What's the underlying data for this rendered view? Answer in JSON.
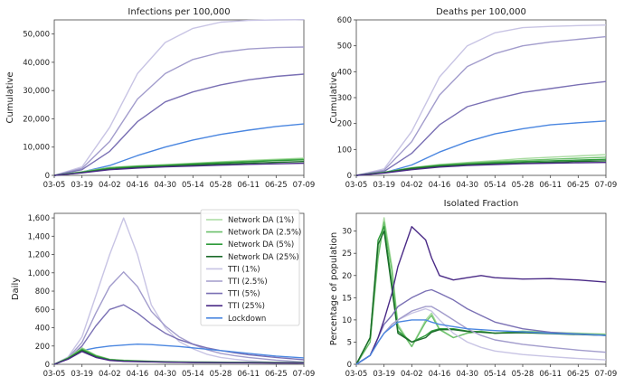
{
  "figure": {
    "x_tick_labels": [
      "03-05",
      "03-19",
      "04-02",
      "04-16",
      "04-30",
      "05-14",
      "05-28",
      "06-11",
      "06-25",
      "07-09"
    ]
  },
  "legend": {
    "entries": [
      {
        "name": "Network DA (1%)",
        "color": "#a8dba0"
      },
      {
        "name": "Network DA (2.5%)",
        "color": "#6cc06c"
      },
      {
        "name": "Network DA (5%)",
        "color": "#2e9a3a"
      },
      {
        "name": "Network DA (25%)",
        "color": "#1b6b2a"
      },
      {
        "name": "TTI (1%)",
        "color": "#c8c4e4"
      },
      {
        "name": "TTI (2.5%)",
        "color": "#a29ccc"
      },
      {
        "name": "TTI (5%)",
        "color": "#7a70b4"
      },
      {
        "name": "TTI (25%)",
        "color": "#4a2a86"
      },
      {
        "name": "Lockdown",
        "color": "#4a86e0"
      }
    ]
  },
  "chart_data": [
    {
      "type": "line",
      "title": "Infections per 100,000",
      "xlabel": "",
      "ylabel": "Cumulative",
      "ylim": [
        0,
        55000
      ],
      "yticks": [
        0,
        10000,
        20000,
        30000,
        40000,
        50000
      ],
      "ytick_labels": [
        "0",
        "10,000",
        "20,000",
        "30,000",
        "40,000",
        "50,000"
      ],
      "x": [
        "03-05",
        "03-19",
        "04-02",
        "04-16",
        "04-30",
        "05-14",
        "05-28",
        "06-11",
        "06-25",
        "07-09"
      ],
      "series": [
        {
          "name": "TTI (1%)",
          "color": "#c8c4e4",
          "values": [
            0,
            3000,
            17000,
            36000,
            47000,
            52000,
            54200,
            54800,
            55000,
            55100
          ]
        },
        {
          "name": "TTI (2.5%)",
          "color": "#a29ccc",
          "values": [
            0,
            2500,
            12000,
            27000,
            36000,
            41000,
            43500,
            44700,
            45200,
            45400
          ]
        },
        {
          "name": "TTI (5%)",
          "color": "#7a70b4",
          "values": [
            0,
            2000,
            8500,
            19000,
            26000,
            29500,
            32000,
            33800,
            35000,
            35800
          ]
        },
        {
          "name": "Lockdown",
          "color": "#4a86e0",
          "values": [
            0,
            1200,
            3500,
            7000,
            10000,
            12500,
            14500,
            16000,
            17300,
            18200
          ]
        },
        {
          "name": "Network DA (1%)",
          "color": "#a8dba0",
          "values": [
            0,
            1300,
            2800,
            3400,
            3800,
            4300,
            4800,
            5300,
            5700,
            6100
          ]
        },
        {
          "name": "Network DA (2.5%)",
          "color": "#6cc06c",
          "values": [
            0,
            1200,
            2700,
            3300,
            3700,
            4200,
            4600,
            5000,
            5400,
            5800
          ]
        },
        {
          "name": "Network DA (5%)",
          "color": "#2e9a3a",
          "values": [
            0,
            1100,
            2500,
            3100,
            3500,
            4000,
            4400,
            4800,
            5200,
            5500
          ]
        },
        {
          "name": "Network DA (25%)",
          "color": "#1b6b2a",
          "values": [
            0,
            1000,
            2200,
            2800,
            3200,
            3600,
            4000,
            4300,
            4600,
            4900
          ]
        },
        {
          "name": "TTI (25%)",
          "color": "#4a2a86",
          "values": [
            0,
            900,
            2000,
            2600,
            3000,
            3300,
            3600,
            3900,
            4100,
            4300
          ]
        }
      ]
    },
    {
      "type": "line",
      "title": "Deaths per 100,000",
      "xlabel": "",
      "ylabel": "Cumulative",
      "ylim": [
        0,
        600
      ],
      "yticks": [
        0,
        100,
        200,
        300,
        400,
        500,
        600
      ],
      "ytick_labels": [
        "0",
        "100",
        "200",
        "300",
        "400",
        "500",
        "600"
      ],
      "x": [
        "03-05",
        "03-19",
        "04-02",
        "04-16",
        "04-30",
        "05-14",
        "05-28",
        "06-11",
        "06-25",
        "07-09"
      ],
      "series": [
        {
          "name": "TTI (1%)",
          "color": "#c8c4e4",
          "values": [
            0,
            25,
            170,
            380,
            500,
            550,
            570,
            575,
            578,
            580
          ]
        },
        {
          "name": "TTI (2.5%)",
          "color": "#a29ccc",
          "values": [
            0,
            20,
            130,
            310,
            420,
            470,
            500,
            515,
            525,
            535
          ]
        },
        {
          "name": "TTI (5%)",
          "color": "#7a70b4",
          "values": [
            0,
            15,
            85,
            195,
            265,
            295,
            320,
            335,
            350,
            362
          ]
        },
        {
          "name": "Lockdown",
          "color": "#4a86e0",
          "values": [
            0,
            10,
            40,
            90,
            130,
            160,
            180,
            195,
            203,
            210
          ]
        },
        {
          "name": "Network DA (1%)",
          "color": "#a8dba0",
          "values": [
            0,
            12,
            30,
            42,
            50,
            57,
            65,
            70,
            75,
            80
          ]
        },
        {
          "name": "Network DA (2.5%)",
          "color": "#6cc06c",
          "values": [
            0,
            12,
            29,
            40,
            47,
            53,
            58,
            62,
            66,
            70
          ]
        },
        {
          "name": "Network DA (5%)",
          "color": "#2e9a3a",
          "values": [
            0,
            11,
            28,
            38,
            44,
            49,
            53,
            56,
            59,
            62
          ]
        },
        {
          "name": "Network DA (25%)",
          "color": "#1b6b2a",
          "values": [
            0,
            10,
            26,
            35,
            41,
            45,
            48,
            51,
            54,
            56
          ]
        },
        {
          "name": "TTI (25%)",
          "color": "#4a2a86",
          "values": [
            0,
            9,
            22,
            32,
            38,
            42,
            45,
            47,
            49,
            50
          ]
        }
      ]
    },
    {
      "type": "line",
      "title": "",
      "xlabel": "",
      "ylabel": "Daily",
      "ylim": [
        0,
        1650
      ],
      "yticks": [
        0,
        200,
        400,
        600,
        800,
        1000,
        1200,
        1400,
        1600
      ],
      "ytick_labels": [
        "0",
        "200",
        "400",
        "600",
        "800",
        "1,000",
        "1,200",
        "1,400",
        "1,600"
      ],
      "x": [
        "03-05",
        "03-12",
        "03-19",
        "03-26",
        "04-02",
        "04-09",
        "04-16",
        "04-23",
        "04-30",
        "05-07",
        "05-14",
        "05-21",
        "05-28",
        "06-04",
        "06-11",
        "06-18",
        "06-25",
        "07-02",
        "07-09"
      ],
      "series": [
        {
          "name": "TTI (1%)",
          "color": "#c8c4e4",
          "values": [
            0,
            80,
            300,
            750,
            1200,
            1600,
            1200,
            650,
            400,
            250,
            170,
            110,
            75,
            55,
            40,
            30,
            22,
            15,
            10
          ]
        },
        {
          "name": "TTI (2.5%)",
          "color": "#a29ccc",
          "values": [
            0,
            70,
            240,
            560,
            850,
            1010,
            850,
            580,
            420,
            300,
            220,
            160,
            120,
            95,
            75,
            60,
            45,
            35,
            25
          ]
        },
        {
          "name": "TTI (5%)",
          "color": "#7a70b4",
          "values": [
            0,
            60,
            200,
            420,
            600,
            650,
            560,
            440,
            340,
            270,
            220,
            180,
            150,
            125,
            105,
            90,
            75,
            62,
            50
          ]
        },
        {
          "name": "Lockdown",
          "color": "#4a86e0",
          "values": [
            0,
            60,
            150,
            180,
            200,
            210,
            220,
            215,
            205,
            195,
            180,
            165,
            150,
            135,
            120,
            105,
            90,
            80,
            70
          ]
        },
        {
          "name": "Network DA (1%)",
          "color": "#a8dba0",
          "values": [
            0,
            70,
            180,
            100,
            55,
            45,
            40,
            35,
            30,
            28,
            26,
            25,
            24,
            23,
            22,
            22,
            21,
            20,
            20
          ]
        },
        {
          "name": "Network DA (2.5%)",
          "color": "#6cc06c",
          "values": [
            0,
            70,
            170,
            95,
            52,
            42,
            37,
            32,
            28,
            26,
            25,
            24,
            23,
            22,
            21,
            20,
            20,
            19,
            18
          ]
        },
        {
          "name": "Network DA (5%)",
          "color": "#2e9a3a",
          "values": [
            0,
            65,
            160,
            90,
            50,
            40,
            35,
            30,
            27,
            25,
            23,
            22,
            21,
            20,
            20,
            19,
            18,
            18,
            17
          ]
        },
        {
          "name": "Network DA (25%)",
          "color": "#1b6b2a",
          "values": [
            0,
            60,
            150,
            80,
            45,
            36,
            32,
            28,
            25,
            23,
            21,
            20,
            19,
            18,
            18,
            17,
            16,
            16,
            15
          ]
        },
        {
          "name": "TTI (25%)",
          "color": "#4a2a86",
          "values": [
            0,
            55,
            140,
            75,
            42,
            33,
            30,
            27,
            24,
            22,
            20,
            19,
            18,
            17,
            17,
            16,
            15,
            15,
            14
          ]
        }
      ]
    },
    {
      "type": "line",
      "title": "Isolated Fraction",
      "xlabel": "",
      "ylabel": "Percentage of population",
      "ylim": [
        0,
        34
      ],
      "yticks": [
        0,
        5,
        10,
        15,
        20,
        25,
        30
      ],
      "ytick_labels": [
        "0",
        "5",
        "10",
        "15",
        "20",
        "25",
        "30"
      ],
      "x": [
        "03-05",
        "03-12",
        "03-16",
        "03-19",
        "03-23",
        "03-26",
        "04-02",
        "04-09",
        "04-12",
        "04-16",
        "04-23",
        "04-30",
        "05-07",
        "05-14",
        "05-28",
        "06-11",
        "06-25",
        "07-09"
      ],
      "series": [
        {
          "name": "Network DA (1%)",
          "color": "#a8dba0",
          "values": [
            0,
            5,
            25,
            33,
            22,
            9,
            4,
            10,
            11.5,
            8,
            6,
            7,
            7.5,
            7,
            7.5,
            7.2,
            7,
            6.8
          ]
        },
        {
          "name": "Network DA (2.5%)",
          "color": "#6cc06c",
          "values": [
            0,
            5,
            24,
            32,
            21,
            8.5,
            4,
            9.5,
            11,
            7.8,
            6,
            7,
            7.4,
            7,
            7.4,
            7.1,
            6.9,
            6.6
          ]
        },
        {
          "name": "Network DA (5%)",
          "color": "#2e9a3a",
          "values": [
            0,
            6,
            28,
            31,
            18,
            7.5,
            5,
            6.5,
            7.5,
            8,
            8,
            7.5,
            7.3,
            7,
            7.2,
            7,
            6.8,
            6.6
          ]
        },
        {
          "name": "Network DA (25%)",
          "color": "#1b6b2a",
          "values": [
            0,
            6,
            27,
            30,
            17,
            7,
            5,
            6,
            7.2,
            7.8,
            7.8,
            7.4,
            7.2,
            7,
            7.1,
            6.9,
            6.7,
            6.5
          ]
        },
        {
          "name": "TTI (1%)",
          "color": "#c8c4e4",
          "values": [
            0,
            2,
            5,
            7,
            9,
            10,
            11.5,
            12.5,
            12,
            10,
            7,
            5,
            3.8,
            3,
            2.2,
            1.7,
            1.3,
            1
          ]
        },
        {
          "name": "TTI (2.5%)",
          "color": "#a29ccc",
          "values": [
            0,
            2,
            5,
            7,
            9,
            10,
            12,
            13,
            13,
            12,
            10,
            8,
            6.5,
            5.5,
            4.5,
            3.8,
            3.2,
            2.7
          ]
        },
        {
          "name": "TTI (5%)",
          "color": "#7a70b4",
          "values": [
            0,
            2,
            6,
            9,
            11,
            13,
            15,
            16.5,
            16.8,
            16,
            14.5,
            12.5,
            11,
            9.5,
            8,
            7.2,
            6.8,
            6.5
          ]
        },
        {
          "name": "TTI (25%)",
          "color": "#4a2a86",
          "values": [
            0,
            2,
            6,
            10,
            16,
            22,
            31,
            28,
            24,
            20,
            19,
            19.5,
            20,
            19.5,
            19.2,
            19.3,
            19,
            18.5
          ]
        },
        {
          "name": "Lockdown",
          "color": "#4a86e0",
          "values": [
            0,
            2,
            5,
            7,
            8.5,
            9.5,
            10,
            10,
            9.5,
            9,
            8.5,
            8,
            7.8,
            7.6,
            7.3,
            7,
            6.8,
            6.5
          ]
        }
      ]
    }
  ]
}
